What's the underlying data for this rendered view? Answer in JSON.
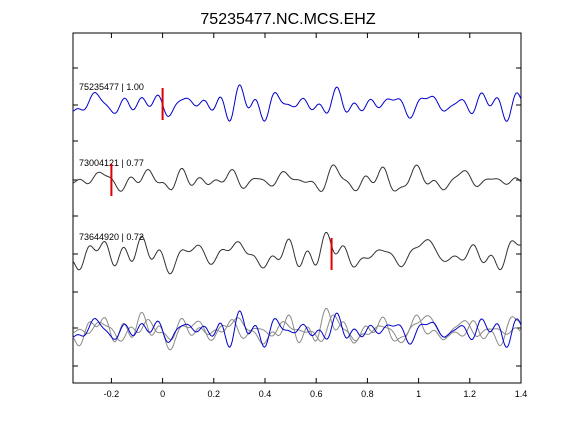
{
  "chart_data": {
    "type": "line",
    "title": "75235477.NC.MCS.EHZ",
    "xlabel": "",
    "ylabel": "",
    "xlim": [
      -0.35,
      1.4
    ],
    "x_ticks": [
      -0.2,
      0,
      0.2,
      0.4,
      0.6,
      0.8,
      1,
      1.2,
      1.4
    ],
    "x_tick_labels": [
      "-0.2",
      "0",
      "0.2",
      "0.4",
      "0.6",
      "0.8",
      "1",
      "1.2",
      "1.4"
    ],
    "grid": false,
    "legend": "none",
    "colors": {
      "reference": "#0000cc",
      "other": "#333333",
      "overlay_other": "#8a8a8a",
      "pick": "#e00000"
    },
    "traces": [
      {
        "name": "75235477 | 1.00",
        "color": "#0000cc",
        "pick_time": 0.0,
        "seed": 7
      },
      {
        "name": "73004121 | 0.77",
        "color": "#333333",
        "pick_time": -0.2,
        "seed": 13
      },
      {
        "name": "73644920 | 0.72",
        "color": "#333333",
        "pick_time": 0.66,
        "seed": 29
      }
    ],
    "overlay": {
      "description_visible": false,
      "includes": [
        0,
        1,
        2
      ]
    }
  }
}
